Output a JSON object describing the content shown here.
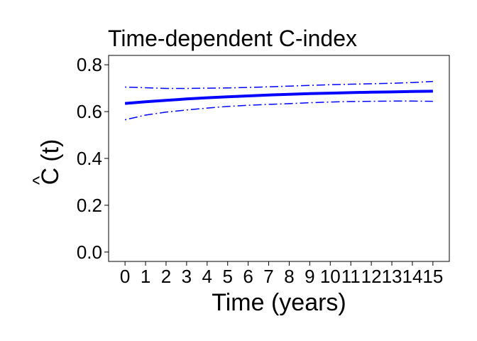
{
  "chart_data": {
    "type": "line",
    "title": "Time-dependent C-index",
    "xlabel": "Time (years)",
    "ylabel": {
      "hat": "^",
      "base": "C",
      "arg": "(t)"
    },
    "x_ticks": [
      "0",
      "1",
      "2",
      "3",
      "4",
      "5",
      "6",
      "7",
      "8",
      "9",
      "10",
      "11",
      "12",
      "13",
      "14",
      "15"
    ],
    "y_ticks": [
      "0.0",
      "0.2",
      "0.4",
      "0.6",
      "0.8"
    ],
    "xlim": [
      -0.8,
      15.8
    ],
    "ylim": [
      -0.04,
      0.84
    ],
    "grid": false,
    "colors": {
      "series": "#0000ff",
      "frame": "#000000"
    },
    "x": [
      0,
      1,
      2,
      3,
      4,
      5,
      6,
      7,
      8,
      9,
      10,
      11,
      12,
      13,
      14,
      15
    ],
    "series": [
      {
        "role": "estimate",
        "style": "solid",
        "values": [
          0.635,
          0.642,
          0.648,
          0.654,
          0.659,
          0.663,
          0.667,
          0.671,
          0.674,
          0.677,
          0.679,
          0.681,
          0.683,
          0.684,
          0.686,
          0.687
        ]
      },
      {
        "role": "upper",
        "style": "dashdot",
        "values": [
          0.705,
          0.702,
          0.699,
          0.699,
          0.7,
          0.701,
          0.703,
          0.706,
          0.709,
          0.712,
          0.715,
          0.717,
          0.719,
          0.721,
          0.724,
          0.729
        ]
      },
      {
        "role": "lower",
        "style": "dashdot",
        "values": [
          0.565,
          0.585,
          0.598,
          0.607,
          0.615,
          0.622,
          0.627,
          0.631,
          0.634,
          0.638,
          0.641,
          0.643,
          0.644,
          0.645,
          0.645,
          0.644
        ]
      }
    ]
  }
}
